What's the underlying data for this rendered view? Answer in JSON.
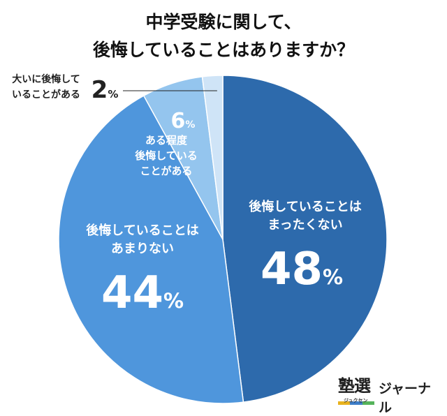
{
  "title_line1": "中学受験に関して、",
  "title_line2": "後悔していることはありますか？",
  "chart_data": {
    "type": "pie",
    "title": "中学受験に関して、後悔していることはありますか？",
    "start_angle_deg": 0,
    "direction": "clockwise",
    "slices": [
      {
        "label_lines": [
          "後悔していることは",
          "まったくない"
        ],
        "value": 48,
        "color": "#2d6aac",
        "label_color": "#ffffff"
      },
      {
        "label_lines": [
          "後悔していることは",
          "あまりない"
        ],
        "value": 44,
        "color": "#4f96dc",
        "label_color": "#ffffff"
      },
      {
        "label_lines": [
          "ある程度",
          "後悔している",
          "ことがある"
        ],
        "value": 6,
        "color": "#94c5ee",
        "label_color": "#ffffff"
      },
      {
        "label_lines": [
          "大いに後悔して",
          "いることがある"
        ],
        "value": 2,
        "color": "#cfe4f7",
        "label_color": "#222222"
      }
    ],
    "unit": "%"
  },
  "logo": {
    "kanji": "塾選",
    "kana": "ジュクセン",
    "journal": "ジャーナル",
    "underline_colors": [
      "#e8b21e",
      "#3d7dc8",
      "#55b35b"
    ]
  }
}
